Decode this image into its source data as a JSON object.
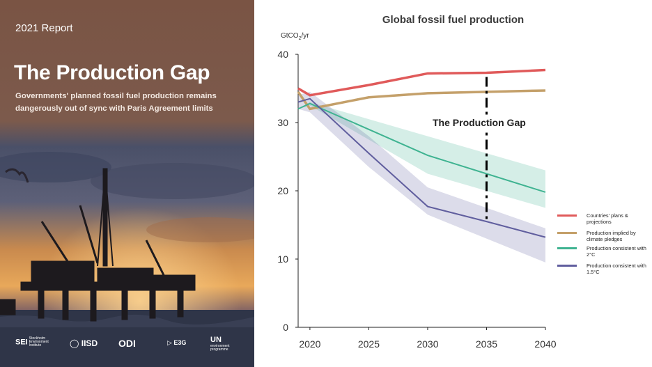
{
  "cover": {
    "year": "2021 Report",
    "title": "The Production Gap",
    "subtitle": "Governments' planned fossil fuel production remains dangerously out of sync with Paris Agreement limits",
    "logos": [
      {
        "name": "SEI",
        "detail": "Stockholm Environment Institute"
      },
      {
        "name": "IISD",
        "detail": ""
      },
      {
        "name": "ODI",
        "detail": ""
      },
      {
        "name": "E3G",
        "detail": ""
      },
      {
        "name": "UN",
        "detail": "environment programme"
      }
    ]
  },
  "chart_data": {
    "type": "line",
    "title": "Global fossil fuel production",
    "ylabel": "GtCO",
    "ylabel_sub": "2",
    "ylabel_suffix": "/yr",
    "xlim": [
      2019,
      2040
    ],
    "ylim": [
      0,
      40
    ],
    "yticks": [
      0,
      10,
      20,
      30,
      40
    ],
    "xticks": [
      2020,
      2025,
      2030,
      2035,
      2040
    ],
    "series": [
      {
        "name": "Countries' plans & projections",
        "color": "#e05a5a",
        "x": [
          2019,
          2020,
          2025,
          2030,
          2035,
          2040
        ],
        "y": [
          35,
          34,
          35.5,
          37.2,
          37.3,
          37.7
        ]
      },
      {
        "name": "Production implied by climate pledges",
        "color": "#c4a06a",
        "x": [
          2019,
          2020,
          2025,
          2030,
          2035,
          2040
        ],
        "y": [
          34.5,
          32,
          33.7,
          34.3,
          34.5,
          34.7
        ]
      },
      {
        "name": "Production consistent with 2°C",
        "color": "#3fb391",
        "x": [
          2019,
          2020,
          2025,
          2030,
          2035,
          2040
        ],
        "y": [
          32,
          32.8,
          29,
          25.2,
          22.5,
          19.8
        ],
        "band_low": [
          32,
          32.5,
          27.5,
          22.5,
          20,
          17.5
        ],
        "band_high": [
          32,
          33,
          30.5,
          28,
          25.5,
          23
        ]
      },
      {
        "name": "Production consistent with 1.5°C",
        "color": "#605e9e",
        "x": [
          2019,
          2020,
          2025,
          2030,
          2035,
          2040
        ],
        "y": [
          33,
          33.5,
          25.5,
          17.7,
          15.5,
          13.2
        ],
        "band_low": [
          32,
          31.5,
          23.5,
          16.5,
          13,
          9.5
        ],
        "band_high": [
          34,
          34.5,
          28,
          20.5,
          17.5,
          14.5
        ]
      }
    ],
    "annotation": {
      "text": "The Production Gap",
      "x": 2035,
      "y_top": 37.3,
      "y_bottom": 15.5
    }
  }
}
